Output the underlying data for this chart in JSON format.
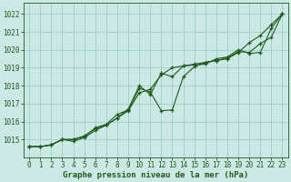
{
  "x": [
    0,
    1,
    2,
    3,
    4,
    5,
    6,
    7,
    8,
    9,
    10,
    11,
    12,
    13,
    14,
    15,
    16,
    17,
    18,
    19,
    20,
    21,
    22,
    23
  ],
  "line1": [
    1014.6,
    1014.6,
    1014.7,
    1015.0,
    1014.9,
    1015.1,
    1015.5,
    1015.8,
    1016.2,
    1016.6,
    1017.6,
    1017.8,
    1018.6,
    1019.0,
    1019.1,
    1019.15,
    1019.2,
    1019.5,
    1019.6,
    1020.0,
    1019.8,
    1019.85,
    1021.2,
    1022.0
  ],
  "line2": [
    1014.6,
    1014.6,
    1014.7,
    1015.0,
    1015.0,
    1015.2,
    1015.6,
    1015.8,
    1016.2,
    1016.7,
    1018.0,
    1017.5,
    1018.7,
    1018.5,
    1019.1,
    1019.2,
    1019.3,
    1019.4,
    1019.5,
    1019.85,
    1020.4,
    1020.8,
    1021.4,
    1022.0
  ],
  "line3": [
    1014.6,
    1014.6,
    1014.7,
    1015.0,
    1015.0,
    1015.15,
    1015.65,
    1015.85,
    1016.4,
    1016.65,
    1017.85,
    1017.65,
    1016.6,
    1016.65,
    1018.5,
    1019.05,
    1019.3,
    1019.4,
    1019.55,
    1019.9,
    1019.85,
    1020.35,
    1020.7,
    1022.0
  ],
  "bg_color": "#cce8e4",
  "grid_color": "#9ececa",
  "line_color": "#1e5c1e",
  "title": "Graphe pression niveau de la mer (hPa)",
  "ylim": [
    1014.0,
    1022.6
  ],
  "yticks": [
    1015,
    1016,
    1017,
    1018,
    1019,
    1020,
    1021,
    1022
  ],
  "xlim": [
    -0.5,
    23.5
  ],
  "xticks": [
    0,
    1,
    2,
    3,
    4,
    5,
    6,
    7,
    8,
    9,
    10,
    11,
    12,
    13,
    14,
    15,
    16,
    17,
    18,
    19,
    20,
    21,
    22,
    23
  ],
  "tick_fontsize": 5.5,
  "title_fontsize": 6.5
}
